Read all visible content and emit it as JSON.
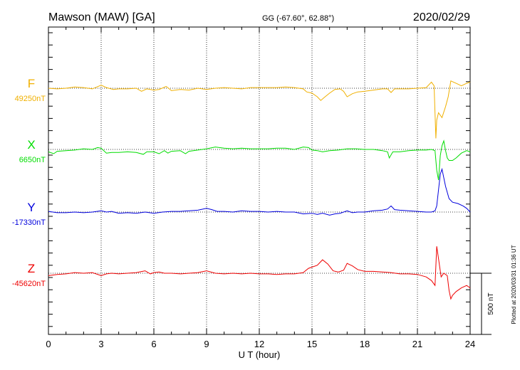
{
  "header": {
    "station": "Mawson (MAW)  [GA]",
    "coords": "GG (-67.60°,  62.88°)",
    "date": "2020/02/29"
  },
  "footer": {
    "plotted": "Plotted at 2020/03/31 01:36 UT",
    "scale_label": "500 nT"
  },
  "chart_data": {
    "type": "line",
    "title": "Mawson (MAW)  [GA]",
    "xlabel": "U T (hour)",
    "xlim": [
      0,
      24
    ],
    "x_ticks": [
      0,
      3,
      6,
      9,
      12,
      15,
      18,
      21,
      24
    ],
    "grid": true,
    "scale_bar_nT": 500,
    "colors": {
      "F": "#f0b000",
      "X": "#00dd00",
      "Y": "#0000dd",
      "Z": "#ee0000"
    },
    "series": [
      {
        "name": "F",
        "baseline_label": "49250nT",
        "baseline_nT": 49250,
        "color": "#f0b000",
        "points": [
          [
            0,
            49250
          ],
          [
            0.5,
            49245
          ],
          [
            1,
            49250
          ],
          [
            1.5,
            49260
          ],
          [
            2,
            49255
          ],
          [
            2.5,
            49245
          ],
          [
            3,
            49275
          ],
          [
            3.3,
            49255
          ],
          [
            3.7,
            49240
          ],
          [
            4,
            49245
          ],
          [
            4.5,
            49245
          ],
          [
            5,
            49250
          ],
          [
            5.3,
            49225
          ],
          [
            5.6,
            49245
          ],
          [
            6,
            49235
          ],
          [
            6.3,
            49240
          ],
          [
            6.7,
            49265
          ],
          [
            7,
            49230
          ],
          [
            7.5,
            49240
          ],
          [
            8,
            49235
          ],
          [
            8.5,
            49250
          ],
          [
            9,
            49240
          ],
          [
            9.5,
            49250
          ],
          [
            10,
            49255
          ],
          [
            10.5,
            49250
          ],
          [
            11,
            49245
          ],
          [
            11.5,
            49255
          ],
          [
            12,
            49255
          ],
          [
            12.5,
            49255
          ],
          [
            13,
            49255
          ],
          [
            13.5,
            49260
          ],
          [
            14,
            49255
          ],
          [
            14.5,
            49245
          ],
          [
            14.7,
            49220
          ],
          [
            15,
            49210
          ],
          [
            15.3,
            49180
          ],
          [
            15.5,
            49150
          ],
          [
            15.7,
            49175
          ],
          [
            16,
            49210
          ],
          [
            16.3,
            49240
          ],
          [
            16.6,
            49245
          ],
          [
            16.8,
            49225
          ],
          [
            17,
            49180
          ],
          [
            17.3,
            49205
          ],
          [
            17.6,
            49220
          ],
          [
            18,
            49225
          ],
          [
            18.5,
            49235
          ],
          [
            19,
            49245
          ],
          [
            19.3,
            49245
          ],
          [
            19.5,
            49215
          ],
          [
            19.7,
            49245
          ],
          [
            20,
            49245
          ],
          [
            20.5,
            49245
          ],
          [
            21,
            49250
          ],
          [
            21.5,
            49255
          ],
          [
            21.8,
            49300
          ],
          [
            21.95,
            49270
          ],
          [
            22.05,
            48840
          ],
          [
            22.1,
            48990
          ],
          [
            22.2,
            49050
          ],
          [
            22.4,
            49010
          ],
          [
            22.6,
            49100
          ],
          [
            22.75,
            49180
          ],
          [
            22.9,
            49310
          ],
          [
            23.2,
            49290
          ],
          [
            23.5,
            49270
          ],
          [
            23.8,
            49290
          ],
          [
            24,
            49300
          ]
        ]
      },
      {
        "name": "X",
        "baseline_label": "6650nT",
        "baseline_nT": 6650,
        "color": "#00dd00",
        "points": [
          [
            0,
            6630
          ],
          [
            0.3,
            6615
          ],
          [
            0.5,
            6635
          ],
          [
            1,
            6640
          ],
          [
            1.5,
            6645
          ],
          [
            2,
            6655
          ],
          [
            2.5,
            6650
          ],
          [
            2.8,
            6665
          ],
          [
            3,
            6660
          ],
          [
            3.3,
            6620
          ],
          [
            3.6,
            6625
          ],
          [
            4,
            6625
          ],
          [
            4.5,
            6630
          ],
          [
            5,
            6625
          ],
          [
            5.4,
            6610
          ],
          [
            5.6,
            6630
          ],
          [
            6,
            6630
          ],
          [
            6.3,
            6615
          ],
          [
            6.6,
            6640
          ],
          [
            6.8,
            6620
          ],
          [
            7,
            6635
          ],
          [
            7.5,
            6640
          ],
          [
            7.8,
            6615
          ],
          [
            8,
            6635
          ],
          [
            8.5,
            6645
          ],
          [
            9,
            6655
          ],
          [
            9.5,
            6670
          ],
          [
            10,
            6660
          ],
          [
            10.5,
            6655
          ],
          [
            11,
            6660
          ],
          [
            11.5,
            6655
          ],
          [
            12,
            6655
          ],
          [
            12.5,
            6655
          ],
          [
            13,
            6660
          ],
          [
            13.5,
            6660
          ],
          [
            14,
            6650
          ],
          [
            14.5,
            6670
          ],
          [
            14.8,
            6665
          ],
          [
            15,
            6645
          ],
          [
            15.3,
            6640
          ],
          [
            15.6,
            6630
          ],
          [
            16,
            6640
          ],
          [
            16.5,
            6645
          ],
          [
            17,
            6655
          ],
          [
            17.5,
            6655
          ],
          [
            18,
            6650
          ],
          [
            18.5,
            6650
          ],
          [
            19,
            6640
          ],
          [
            19.3,
            6630
          ],
          [
            19.4,
            6580
          ],
          [
            19.6,
            6630
          ],
          [
            20,
            6630
          ],
          [
            20.5,
            6640
          ],
          [
            21,
            6645
          ],
          [
            21.5,
            6645
          ],
          [
            21.8,
            6650
          ],
          [
            22.0,
            6640
          ],
          [
            22.1,
            6480
          ],
          [
            22.2,
            6400
          ],
          [
            22.3,
            6600
          ],
          [
            22.4,
            6680
          ],
          [
            22.5,
            6720
          ],
          [
            22.6,
            6640
          ],
          [
            22.7,
            6580
          ],
          [
            22.8,
            6560
          ],
          [
            23.0,
            6560
          ],
          [
            23.2,
            6580
          ],
          [
            23.5,
            6620
          ],
          [
            23.8,
            6640
          ],
          [
            24,
            6630
          ]
        ]
      },
      {
        "name": "Y",
        "baseline_label": "-17330nT",
        "baseline_nT": -17330,
        "color": "#0000dd",
        "points": [
          [
            0,
            -17325
          ],
          [
            0.5,
            -17335
          ],
          [
            1,
            -17335
          ],
          [
            1.5,
            -17330
          ],
          [
            2,
            -17335
          ],
          [
            2.5,
            -17330
          ],
          [
            3,
            -17320
          ],
          [
            3.3,
            -17330
          ],
          [
            3.6,
            -17325
          ],
          [
            4,
            -17340
          ],
          [
            4.5,
            -17335
          ],
          [
            5,
            -17340
          ],
          [
            5.5,
            -17330
          ],
          [
            6,
            -17340
          ],
          [
            6.5,
            -17330
          ],
          [
            7,
            -17325
          ],
          [
            7.5,
            -17325
          ],
          [
            8,
            -17320
          ],
          [
            8.5,
            -17315
          ],
          [
            9,
            -17300
          ],
          [
            9.3,
            -17310
          ],
          [
            9.6,
            -17325
          ],
          [
            10,
            -17325
          ],
          [
            10.5,
            -17330
          ],
          [
            11,
            -17320
          ],
          [
            11.5,
            -17325
          ],
          [
            12,
            -17325
          ],
          [
            12.5,
            -17330
          ],
          [
            13,
            -17325
          ],
          [
            13.5,
            -17330
          ],
          [
            14,
            -17330
          ],
          [
            14.5,
            -17345
          ],
          [
            15,
            -17340
          ],
          [
            15.3,
            -17350
          ],
          [
            15.6,
            -17340
          ],
          [
            16,
            -17355
          ],
          [
            16.3,
            -17345
          ],
          [
            16.6,
            -17340
          ],
          [
            17,
            -17320
          ],
          [
            17.3,
            -17335
          ],
          [
            17.6,
            -17330
          ],
          [
            18,
            -17330
          ],
          [
            18.5,
            -17320
          ],
          [
            19,
            -17315
          ],
          [
            19.3,
            -17305
          ],
          [
            19.5,
            -17280
          ],
          [
            19.7,
            -17310
          ],
          [
            20,
            -17315
          ],
          [
            20.5,
            -17320
          ],
          [
            21,
            -17325
          ],
          [
            21.5,
            -17330
          ],
          [
            21.8,
            -17330
          ],
          [
            22.0,
            -17320
          ],
          [
            22.1,
            -17280
          ],
          [
            22.2,
            -17150
          ],
          [
            22.3,
            -17020
          ],
          [
            22.4,
            -16980
          ],
          [
            22.5,
            -17050
          ],
          [
            22.6,
            -17120
          ],
          [
            22.8,
            -17220
          ],
          [
            23.0,
            -17250
          ],
          [
            23.3,
            -17260
          ],
          [
            23.6,
            -17280
          ],
          [
            23.8,
            -17300
          ],
          [
            24,
            -17330
          ]
        ]
      },
      {
        "name": "Z",
        "baseline_label": "-45620nT",
        "baseline_nT": -45620,
        "color": "#ee0000",
        "points": [
          [
            0,
            -45640
          ],
          [
            0.5,
            -45630
          ],
          [
            1,
            -45625
          ],
          [
            1.5,
            -45615
          ],
          [
            2,
            -45620
          ],
          [
            2.5,
            -45615
          ],
          [
            3,
            -45640
          ],
          [
            3.3,
            -45625
          ],
          [
            3.6,
            -45620
          ],
          [
            4,
            -45625
          ],
          [
            4.5,
            -45620
          ],
          [
            5,
            -45615
          ],
          [
            5.5,
            -45600
          ],
          [
            5.8,
            -45625
          ],
          [
            6,
            -45615
          ],
          [
            6.3,
            -45610
          ],
          [
            6.6,
            -45620
          ],
          [
            7,
            -45620
          ],
          [
            7.5,
            -45625
          ],
          [
            8,
            -45620
          ],
          [
            8.5,
            -45615
          ],
          [
            9,
            -45600
          ],
          [
            9.5,
            -45620
          ],
          [
            10,
            -45625
          ],
          [
            10.5,
            -45620
          ],
          [
            11,
            -45625
          ],
          [
            11.5,
            -45620
          ],
          [
            12,
            -45625
          ],
          [
            12.5,
            -45625
          ],
          [
            13,
            -45630
          ],
          [
            13.5,
            -45625
          ],
          [
            14,
            -45625
          ],
          [
            14.5,
            -45615
          ],
          [
            14.8,
            -45580
          ],
          [
            15,
            -45570
          ],
          [
            15.3,
            -45555
          ],
          [
            15.6,
            -45510
          ],
          [
            15.9,
            -45545
          ],
          [
            16.2,
            -45600
          ],
          [
            16.5,
            -45610
          ],
          [
            16.8,
            -45595
          ],
          [
            17,
            -45540
          ],
          [
            17.3,
            -45560
          ],
          [
            17.6,
            -45590
          ],
          [
            18,
            -45605
          ],
          [
            18.5,
            -45605
          ],
          [
            19,
            -45610
          ],
          [
            19.5,
            -45615
          ],
          [
            20,
            -45625
          ],
          [
            20.5,
            -45625
          ],
          [
            21,
            -45630
          ],
          [
            21.5,
            -45650
          ],
          [
            21.8,
            -45680
          ],
          [
            22.0,
            -45720
          ],
          [
            22.1,
            -45400
          ],
          [
            22.2,
            -45500
          ],
          [
            22.35,
            -45650
          ],
          [
            22.5,
            -45620
          ],
          [
            22.7,
            -45640
          ],
          [
            22.8,
            -45760
          ],
          [
            22.9,
            -45830
          ],
          [
            23.0,
            -45800
          ],
          [
            23.2,
            -45770
          ],
          [
            23.5,
            -45740
          ],
          [
            23.8,
            -45720
          ],
          [
            24,
            -45740
          ]
        ]
      }
    ]
  }
}
